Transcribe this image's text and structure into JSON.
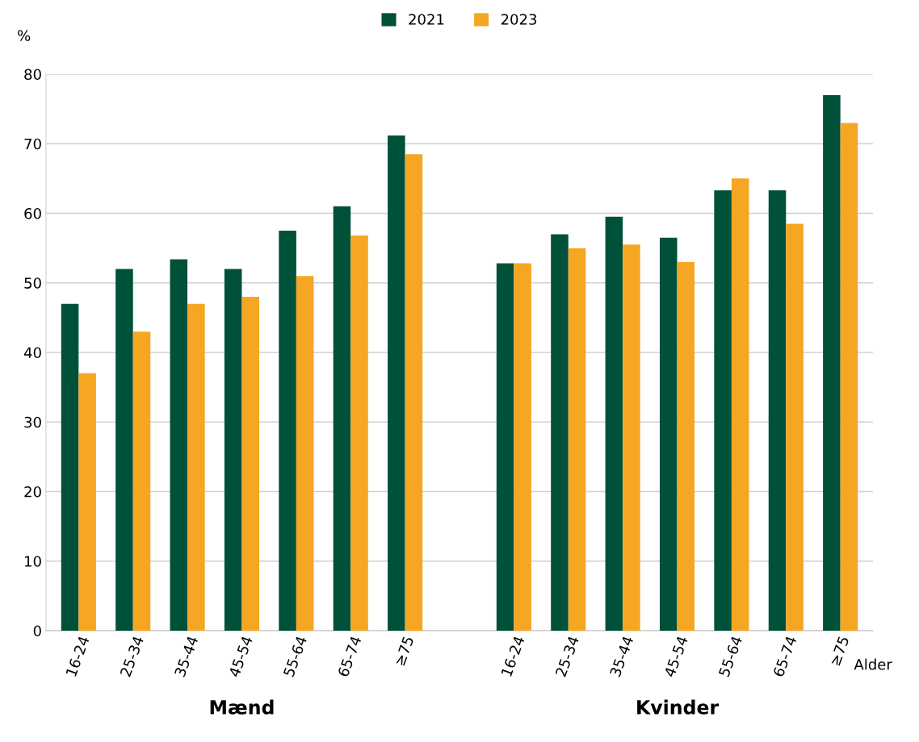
{
  "chart_data": {
    "type": "bar",
    "categories": [
      "16-24",
      "25-34",
      "35-44",
      "45-54",
      "55-64",
      "65-74",
      "≥75",
      null,
      "16-24",
      "25-34",
      "35-44",
      "45-54",
      "55-64",
      "65-74",
      "≥75"
    ],
    "series": [
      {
        "name": "2021",
        "color": "#00513a",
        "values": [
          47,
          52,
          53.4,
          52,
          57.5,
          61,
          71.2,
          null,
          52.8,
          57,
          59.5,
          56.5,
          63.3,
          63.3,
          77
        ]
      },
      {
        "name": "2023",
        "color": "#f5a623",
        "values": [
          37,
          43,
          47,
          48,
          51,
          56.8,
          68.5,
          null,
          52.8,
          55,
          55.5,
          53,
          65,
          58.5,
          73
        ]
      }
    ],
    "ylabel": "%",
    "xlabel": "Alder",
    "annotations": [
      "Mænd",
      "Kvinder"
    ],
    "ylim": [
      0,
      80
    ],
    "yticks": [
      0,
      10,
      20,
      30,
      40,
      50,
      60,
      70,
      80
    ],
    "grid": "y",
    "legend": "top"
  }
}
